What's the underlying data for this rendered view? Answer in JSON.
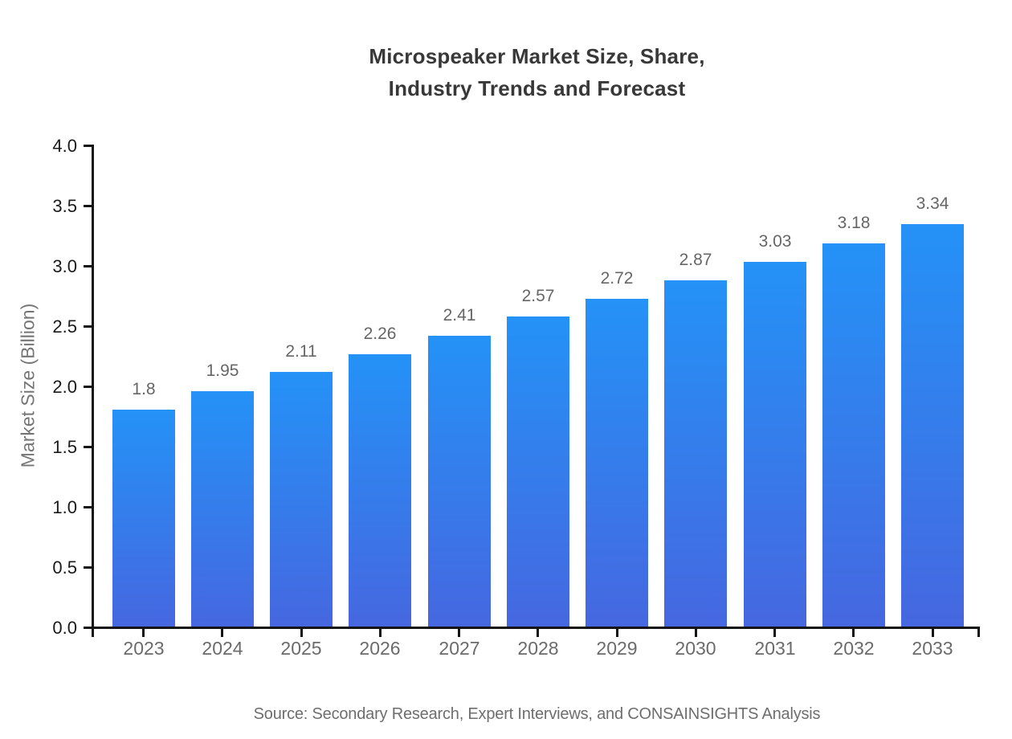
{
  "chart_data": {
    "type": "bar",
    "title": "Microspeaker Market Size, Share,\nIndustry Trends and Forecast",
    "categories": [
      "2023",
      "2024",
      "2025",
      "2026",
      "2027",
      "2028",
      "2029",
      "2030",
      "2031",
      "2032",
      "2033"
    ],
    "values": [
      1.8,
      1.95,
      2.11,
      2.26,
      2.41,
      2.57,
      2.72,
      2.87,
      3.03,
      3.18,
      3.34
    ],
    "bar_labels": [
      "1.8",
      "1.95",
      "2.11",
      "2.26",
      "2.41",
      "2.57",
      "2.72",
      "2.87",
      "3.03",
      "3.18",
      "3.34"
    ],
    "xlabel": "",
    "ylabel": "Market Size (Billion)",
    "ylim": [
      0.0,
      4.0
    ],
    "ytick_interval": 0.5,
    "ytick_labels": [
      "0.0",
      "0.5",
      "1.0",
      "1.5",
      "2.0",
      "2.5",
      "3.0",
      "3.5",
      "4.0"
    ],
    "grid": false,
    "legend_position": "none",
    "source_note": "Source: Secondary Research, Expert Interviews, and CONSAINSIGHTS Analysis"
  },
  "style": {
    "background": "#ffffff",
    "bar_gradient_top": "#2492f7",
    "bar_gradient_bottom": "#4667e0",
    "axis_color": "#141414",
    "title_color": "#383838",
    "ytick_label_color": "#1a1a1a",
    "category_label_color": "#6b6b6b",
    "value_label_color": "#666666",
    "axis_title_color": "#757575",
    "source_color": "#6e6e6e"
  }
}
